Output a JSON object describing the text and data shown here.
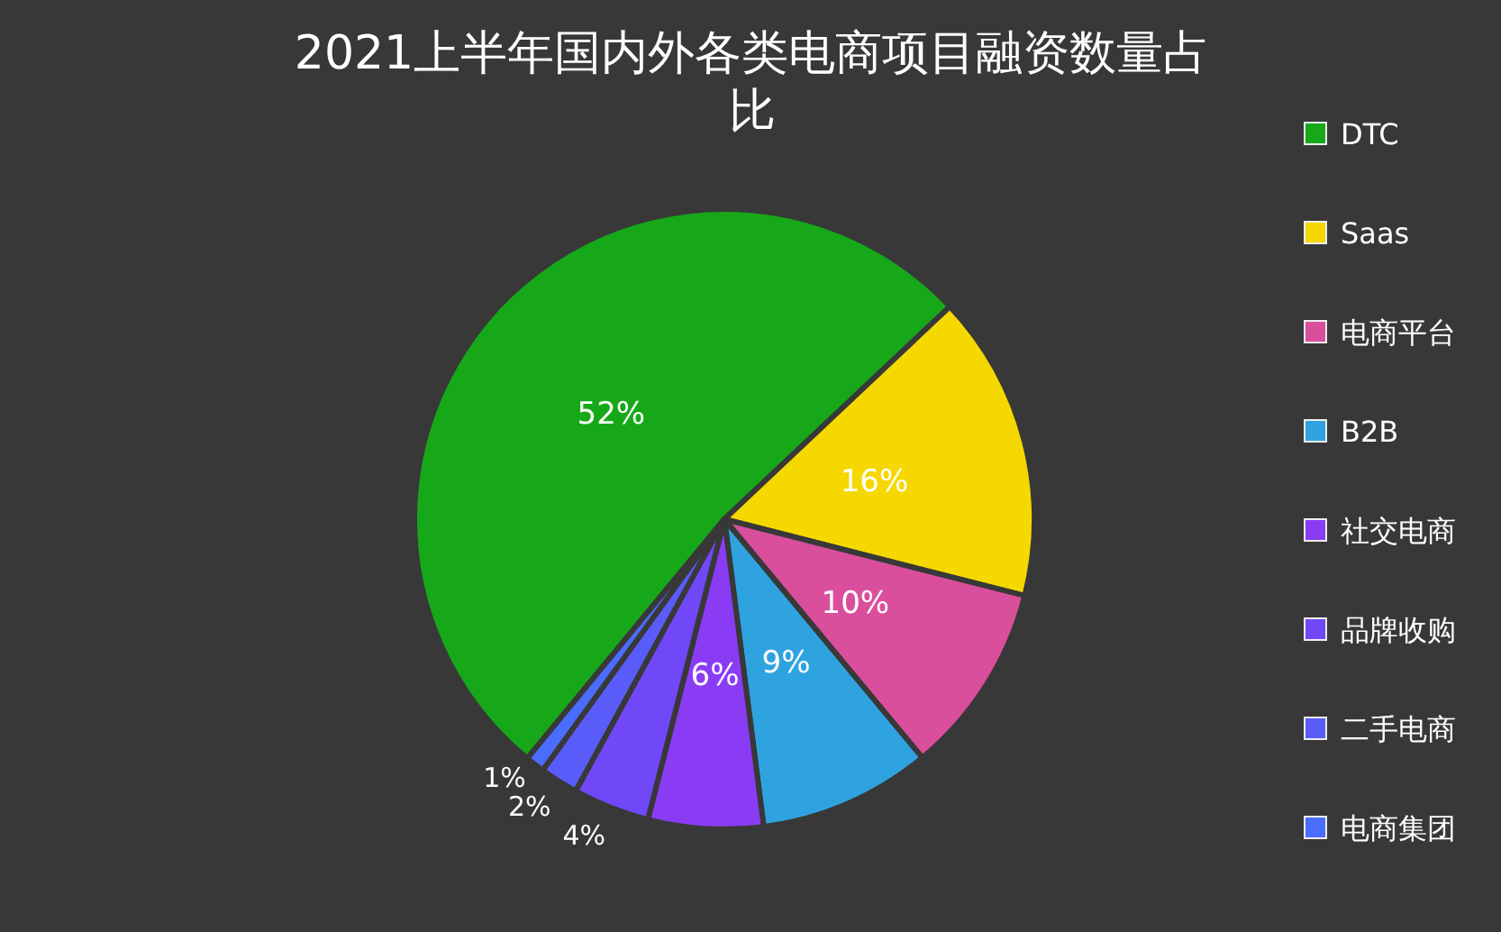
{
  "chart_data": {
    "type": "pie",
    "title": "2021上半年国内外各类电商项目融资数量占比",
    "categories": [
      "DTC",
      "Saas",
      "电商平台",
      "B2B",
      "社交电商",
      "品牌收购",
      "二手电商",
      "电商集团"
    ],
    "values": [
      52,
      16,
      10,
      9,
      6,
      4,
      2,
      1
    ],
    "value_labels": [
      "52%",
      "16%",
      "10%",
      "9%",
      "6%",
      "4%",
      "2%",
      "1%"
    ],
    "colors": [
      "#17a81a",
      "#f5d800",
      "#d94f9c",
      "#2fa3e0",
      "#8a3cf5",
      "#7048f7",
      "#5a5cfa",
      "#4a6cff"
    ],
    "legend": "right"
  }
}
